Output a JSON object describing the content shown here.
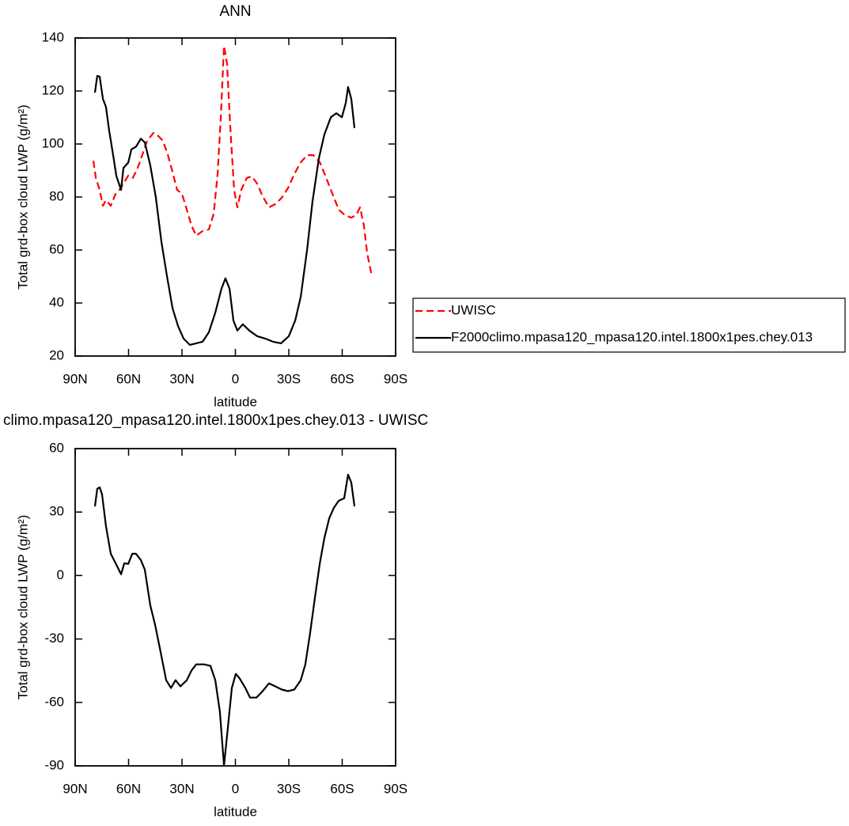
{
  "chart_data": [
    {
      "type": "line",
      "title": "ANN",
      "xlabel": "latitude",
      "ylabel": "Total grd-box cloud LWP (g/m²)",
      "xlim": [
        90,
        -90
      ],
      "xticks": [
        {
          "value": 90,
          "label": "90N"
        },
        {
          "value": 60,
          "label": "60N"
        },
        {
          "value": 30,
          "label": "30N"
        },
        0,
        {
          "value": -30,
          "label": "30S"
        },
        {
          "value": -60,
          "label": "60S"
        },
        {
          "value": -90,
          "label": "90S"
        }
      ],
      "ylim": [
        20,
        140
      ],
      "yticks": [
        20,
        40,
        60,
        80,
        100,
        120,
        140
      ],
      "legend": "right",
      "series": [
        {
          "name": "UWISC",
          "color": "#ff0000",
          "dashed": true,
          "x": [
            79.8,
            78.4,
            76.2,
            74.4,
            72.7,
            70,
            67.3,
            65.1,
            62.9,
            60.2,
            57.6,
            54.9,
            52.2,
            49.6,
            46,
            43.3,
            40.7,
            38,
            35.3,
            32.7,
            30,
            27.3,
            24.7,
            22,
            18.4,
            14.9,
            12.2,
            10,
            8.2,
            6.4,
            4.7,
            2.9,
            0.7,
            -1.1,
            -3.3,
            -6.4,
            -9.1,
            -12.2,
            -15.3,
            -18.9,
            -22.4,
            -26,
            -29.5,
            -33.1,
            -36.7,
            -40.3,
            -43.8,
            -47.4,
            -51,
            -54.5,
            -58.1,
            -61.6,
            -65.1,
            -67.8,
            -70,
            -72.2,
            -74,
            -76.7
          ],
          "values": [
            93.7,
            87.2,
            82.7,
            76.7,
            78.8,
            76.7,
            81.2,
            82.7,
            85.1,
            88.1,
            87.2,
            91,
            96.1,
            101.2,
            104.2,
            103,
            101.2,
            96.1,
            89.3,
            82.7,
            81.2,
            75.2,
            69.3,
            65.4,
            67.2,
            67.8,
            73.7,
            88.7,
            109.6,
            137,
            130.4,
            106.6,
            82.7,
            76.1,
            82.7,
            87.2,
            87.8,
            85.1,
            80.3,
            76.1,
            77.3,
            79.7,
            83.3,
            88.7,
            93.1,
            95.8,
            95.8,
            93.1,
            87.2,
            81.2,
            75.2,
            73.1,
            72.2,
            73.1,
            76.1,
            69.3,
            58.8,
            49.9
          ]
        },
        {
          "name": "F2000climo.mpasa120_mpasa120.intel.1800x1pes.chey.013",
          "color": "#000000",
          "dashed": false,
          "x": [
            78.9,
            77.6,
            76.2,
            74.4,
            72.7,
            70.9,
            68.7,
            66.9,
            64.2,
            62.9,
            60.2,
            58.4,
            55.8,
            53.1,
            50.9,
            47.8,
            44.7,
            41.6,
            38.4,
            35.3,
            32.2,
            29.1,
            25.6,
            22,
            18.4,
            14.9,
            11.3,
            7.8,
            5.6,
            3.3,
            1.1,
            -1.1,
            -4.2,
            -7.8,
            -12.2,
            -16.7,
            -21.1,
            -25.6,
            -30,
            -33.6,
            -36.7,
            -40.3,
            -43.3,
            -46.9,
            -50,
            -53.6,
            -56.7,
            -59.8,
            -62,
            -63.3,
            -65.1,
            -66.9
          ],
          "values": [
            119.4,
            125.7,
            125.4,
            117,
            114,
            105,
            96,
            88,
            82.7,
            91,
            93,
            98,
            99,
            102,
            100.6,
            92,
            80,
            63.3,
            50,
            38,
            31.3,
            26.6,
            24.2,
            24.8,
            25.4,
            29,
            36.4,
            45.4,
            49.3,
            45.4,
            33.4,
            29.6,
            32,
            29.6,
            27.5,
            26.6,
            25.4,
            24.8,
            27.5,
            33.4,
            42.4,
            60.3,
            78.2,
            94.6,
            103.6,
            110.1,
            111.6,
            110.1,
            115.5,
            121.5,
            117,
            106
          ]
        }
      ]
    },
    {
      "type": "line",
      "title": "climo.mpasa120_mpasa120.intel.1800x1pes.chey.013 - UWISC",
      "xlabel": "latitude",
      "ylabel": "Total grd-box cloud LWP (g/m²)",
      "xlim": [
        90,
        -90
      ],
      "xticks": [
        {
          "value": 90,
          "label": "90N"
        },
        {
          "value": 60,
          "label": "60N"
        },
        {
          "value": 30,
          "label": "30N"
        },
        0,
        {
          "value": -30,
          "label": "30S"
        },
        {
          "value": -60,
          "label": "60S"
        },
        {
          "value": -90,
          "label": "90S"
        }
      ],
      "ylim": [
        -90,
        60
      ],
      "yticks": [
        -90,
        -60,
        -30,
        0,
        30,
        60
      ],
      "series": [
        {
          "color": "#000000",
          "dashed": false,
          "x": [
            78.9,
            77.6,
            76.2,
            74.9,
            72.7,
            70,
            67.3,
            64.2,
            62.4,
            60.2,
            57.9,
            55.8,
            53.1,
            50.9,
            47.8,
            45.1,
            42.4,
            38.9,
            36.2,
            33.6,
            30.9,
            27.3,
            24.7,
            22,
            17.6,
            14,
            11.3,
            8.7,
            6.4,
            4.2,
            2,
            -0.2,
            -2.4,
            -5.6,
            -8.2,
            -11.8,
            -15.3,
            -18.9,
            -22.4,
            -26,
            -29.5,
            -33.1,
            -36.7,
            -39.3,
            -42,
            -44.7,
            -47.4,
            -50,
            -52.7,
            -55.3,
            -58,
            -61.1,
            -63.3,
            -65.1,
            -66.9
          ],
          "values": [
            32.7,
            41,
            41.7,
            38.3,
            23.4,
            10.3,
            5.8,
            0.6,
            5.8,
            5.5,
            10.3,
            10.3,
            7.3,
            2.8,
            -14,
            -23.3,
            -34.5,
            -49.5,
            -53.2,
            -49.5,
            -52.4,
            -49.5,
            -45,
            -42,
            -42,
            -42.7,
            -49.5,
            -64.5,
            -89.8,
            -71.9,
            -53.2,
            -46.5,
            -48.7,
            -53.2,
            -57.7,
            -57.7,
            -54.7,
            -51,
            -52.4,
            -53.9,
            -54.7,
            -53.9,
            -49.5,
            -42,
            -27,
            -10.2,
            5.8,
            17.8,
            27.1,
            32,
            35.3,
            36.5,
            47.7,
            43.9,
            32.7
          ]
        }
      ]
    }
  ]
}
